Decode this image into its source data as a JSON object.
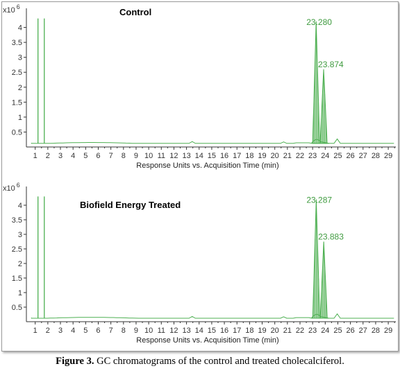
{
  "colors": {
    "trace": "#4caf50",
    "peak_label": "#3f9b3f",
    "axis": "#333333",
    "frame": "#9a9a9a"
  },
  "caption": {
    "label": "Figure 3.",
    "text": " GC chromatograms of the control and treated cholecalciferol."
  },
  "chart_data": [
    {
      "type": "line",
      "panel_label": "Control",
      "scale_label": "x10",
      "scale_exponent": "6",
      "xlabel": "Response Units vs. Acquisition Time (min)",
      "xlim": [
        0.3,
        29.6
      ],
      "ylim": [
        0,
        4.5
      ],
      "x_ticks": [
        "1",
        "2",
        "3",
        "4",
        "5",
        "6",
        "7",
        "8",
        "9",
        "10",
        "11",
        "12",
        "13",
        "14",
        "15",
        "16",
        "17",
        "18",
        "19",
        "20",
        "21",
        "22",
        "23",
        "24",
        "25",
        "26",
        "27",
        "28",
        "29"
      ],
      "y_ticks": [
        "0.5",
        "1",
        "1.5",
        "2",
        "2.5",
        "3",
        "3.5",
        "4"
      ],
      "baseline": 0.12,
      "peaks": [
        {
          "rt": 1.22,
          "height": 4.3,
          "label": ""
        },
        {
          "rt": 1.72,
          "height": 4.3,
          "label": ""
        },
        {
          "rt": 23.28,
          "height": 4.2,
          "label": "23.280"
        },
        {
          "rt": 23.874,
          "height": 2.6,
          "label": "23.874"
        }
      ]
    },
    {
      "type": "line",
      "panel_label": "Biofield  Energy Treated",
      "scale_label": "x10",
      "scale_exponent": "6",
      "xlabel": "Response Units vs. Acquisition Time (min)",
      "xlim": [
        0.3,
        29.6
      ],
      "ylim": [
        0,
        4.5
      ],
      "x_ticks": [
        "1",
        "2",
        "3",
        "4",
        "5",
        "6",
        "7",
        "8",
        "9",
        "10",
        "11",
        "12",
        "13",
        "14",
        "15",
        "16",
        "17",
        "18",
        "19",
        "20",
        "21",
        "22",
        "23",
        "24",
        "25",
        "26",
        "27",
        "28",
        "29"
      ],
      "y_ticks": [
        "0.5",
        "1",
        "1.5",
        "2",
        "2.5",
        "3",
        "3.5",
        "4"
      ],
      "baseline": 0.12,
      "peaks": [
        {
          "rt": 1.22,
          "height": 4.3,
          "label": ""
        },
        {
          "rt": 1.72,
          "height": 4.3,
          "label": ""
        },
        {
          "rt": 23.287,
          "height": 4.2,
          "label": "23.287"
        },
        {
          "rt": 23.883,
          "height": 2.75,
          "label": "23.883"
        }
      ]
    }
  ]
}
